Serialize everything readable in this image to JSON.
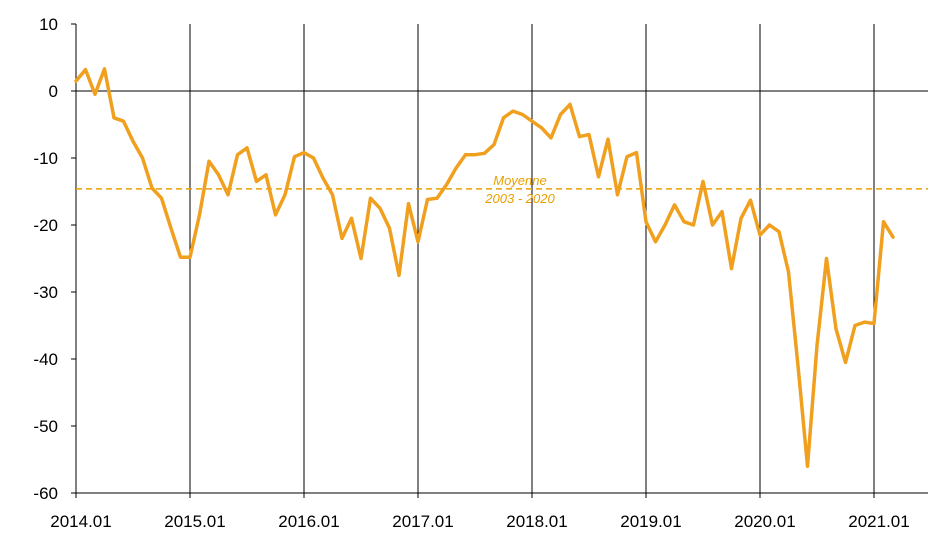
{
  "chart_data": {
    "type": "line",
    "title": "",
    "xlabel": "",
    "ylabel": "",
    "ylim": [
      -60,
      10
    ],
    "y_ticks": [
      10,
      0,
      -10,
      -20,
      -30,
      -40,
      -50,
      -60
    ],
    "x_tick_labels": [
      "2014.01",
      "2015.01",
      "2016.01",
      "2017.01",
      "2018.01",
      "2019.01",
      "2020.01",
      "2021.01"
    ],
    "grid": "vertical lines at each year start",
    "colors": {
      "series": "#f0a01e",
      "average": "#e8a000",
      "axis": "#000000"
    },
    "series": [
      {
        "values": [
          1.5,
          3.2,
          -0.5,
          3.3,
          -4.0,
          -4.5,
          -7.5,
          -10.0,
          -14.5,
          -16.0,
          -20.5,
          -24.8,
          -24.8,
          -18.5,
          -10.5,
          -12.5,
          -15.5,
          -9.5,
          -8.5,
          -13.5,
          -12.5,
          -18.5,
          -15.5,
          -9.8,
          -9.2,
          -10.0,
          -13.0,
          -15.5,
          -22.0,
          -19.0,
          -25.0,
          -16.0,
          -17.5,
          -20.5,
          -27.5,
          -16.8,
          -22.5,
          -16.2,
          -16.0,
          -14.0,
          -11.5,
          -9.5,
          -9.5,
          -9.3,
          -8.0,
          -4.0,
          -3.0,
          -3.5,
          -4.5,
          -5.5,
          -7.0,
          -3.5,
          -2.0,
          -6.8,
          -6.5,
          -12.8,
          -7.2,
          -15.5,
          -9.8,
          -9.2,
          -19.5,
          -22.5,
          -20.0,
          -17.0,
          -19.5,
          -20.0,
          -13.5,
          -20.0,
          -18.0,
          -26.5,
          -19.0,
          -16.3,
          -21.5,
          -20.0,
          -21.0,
          -27.0,
          -41.0,
          -56.0,
          -38.0,
          -25.0,
          -35.5,
          -40.5,
          -35.0,
          -34.5,
          -34.7,
          -19.5,
          -21.8
        ]
      }
    ],
    "average": {
      "value": -14.6,
      "label_line1": "Moyenne",
      "label_line2": "2003 - 2020"
    }
  }
}
